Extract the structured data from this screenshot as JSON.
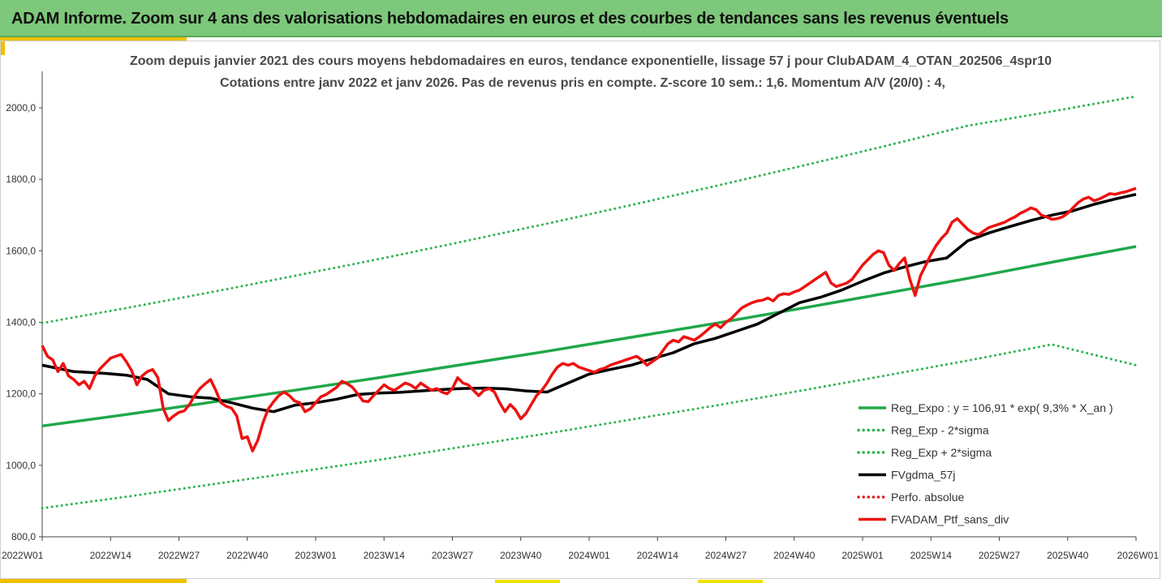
{
  "header": {
    "title": "ADAM Informe. Zoom sur 4 ans des valorisations hebdomadaires en euros et des courbes de tendances sans les revenus éventuels"
  },
  "colors": {
    "banner": "#7dc87a",
    "trend": "#1fa84a",
    "band": "#2bb34f",
    "smooth": "#000000",
    "absolute": "#e02020",
    "portfolio": "#ee1111"
  },
  "chart_data": {
    "type": "line",
    "title_line1": "Zoom depuis janvier 2021 des cours moyens hebdomadaires  en euros, tendance exponentielle, lissage 57 j pour ClubADAM_4_OTAN_202506_4spr10",
    "title_line2": "Cotations entre janv 2022 et janv 2026. Pas de revenus pris en compte. Z-score 10 sem.: 1,6. Momentum  A/V (20/0) : 4,",
    "xlabel": "",
    "ylabel": "",
    "x_range": [
      0,
      208
    ],
    "ylim": [
      800,
      2100
    ],
    "grid": false,
    "legend_position": "bottom-right",
    "x_ticks": [
      {
        "label": "2022W01",
        "x": 0
      },
      {
        "label": "2022W14",
        "x": 13
      },
      {
        "label": "2022W27",
        "x": 26
      },
      {
        "label": "2022W40",
        "x": 39
      },
      {
        "label": "2023W01",
        "x": 52
      },
      {
        "label": "2023W14",
        "x": 65
      },
      {
        "label": "2023W27",
        "x": 78
      },
      {
        "label": "2023W40",
        "x": 91
      },
      {
        "label": "2024W01",
        "x": 104
      },
      {
        "label": "2024W14",
        "x": 117
      },
      {
        "label": "2024W27",
        "x": 130
      },
      {
        "label": "2024W40",
        "x": 143
      },
      {
        "label": "2025W01",
        "x": 156
      },
      {
        "label": "2025W14",
        "x": 169
      },
      {
        "label": "2025W27",
        "x": 182
      },
      {
        "label": "2025W40",
        "x": 195
      },
      {
        "label": "2026W01",
        "x": 208
      }
    ],
    "y_ticks": [
      {
        "label": "800,0",
        "value": 800
      },
      {
        "label": "1000,0",
        "value": 1000
      },
      {
        "label": "1200,0",
        "value": 1200
      },
      {
        "label": "1400,0",
        "value": 1400
      },
      {
        "label": "1600,0",
        "value": 1600
      },
      {
        "label": "1800,0",
        "value": 1800
      },
      {
        "label": "2000,0",
        "value": 2000
      }
    ],
    "series": [
      {
        "name": "Reg_Expo : y = 106,91 * exp( 9,3% *  X_an )",
        "style": "solid-thick",
        "color": "#1fa84a",
        "x": [
          0,
          16,
          32,
          48,
          64,
          80,
          96,
          112,
          128,
          144,
          160,
          176,
          192,
          208
        ],
        "values": [
          1110,
          1142,
          1176,
          1210,
          1245,
          1282,
          1319,
          1358,
          1397,
          1438,
          1480,
          1523,
          1568,
          1612
        ]
      },
      {
        "name": "Reg_Exp - 2*sigma",
        "style": "dotted",
        "color": "#2bb34f",
        "x": [
          0,
          16,
          32,
          48,
          64,
          80,
          96,
          112,
          128,
          144,
          160,
          176,
          192,
          208
        ],
        "values": [
          880,
          912,
          946,
          980,
          1015,
          1052,
          1089,
          1128,
          1167,
          1208,
          1250,
          1293,
          1338,
          1280
        ]
      },
      {
        "name": "Reg_Exp + 2*sigma",
        "style": "dotted",
        "color": "#2bb34f",
        "x": [
          0,
          16,
          32,
          48,
          64,
          80,
          96,
          112,
          128,
          144,
          160,
          176,
          192,
          208
        ],
        "values": [
          1398,
          1440,
          1484,
          1530,
          1577,
          1626,
          1676,
          1728,
          1781,
          1836,
          1892,
          1950,
          1990,
          2032
        ]
      },
      {
        "name": "FVgdma_57j",
        "style": "solid-thick",
        "color": "#000000",
        "x": [
          0,
          6,
          12,
          16,
          20,
          24,
          28,
          32,
          36,
          40,
          44,
          48,
          52,
          56,
          60,
          64,
          68,
          72,
          76,
          80,
          84,
          88,
          92,
          96,
          100,
          104,
          108,
          112,
          116,
          120,
          124,
          128,
          132,
          136,
          140,
          144,
          148,
          152,
          156,
          160,
          164,
          168,
          172,
          176,
          180,
          184,
          188,
          192,
          196,
          200,
          204,
          208
        ],
        "values": [
          1280,
          1262,
          1257,
          1252,
          1240,
          1200,
          1192,
          1188,
          1175,
          1160,
          1150,
          1168,
          1175,
          1185,
          1198,
          1202,
          1204,
          1208,
          1212,
          1215,
          1216,
          1214,
          1208,
          1205,
          1230,
          1255,
          1268,
          1280,
          1298,
          1315,
          1340,
          1355,
          1375,
          1395,
          1425,
          1455,
          1470,
          1490,
          1515,
          1538,
          1555,
          1570,
          1580,
          1628,
          1650,
          1668,
          1685,
          1700,
          1712,
          1730,
          1745,
          1758
        ]
      },
      {
        "name": "Perfo. absolue",
        "style": "dotted",
        "color": "#e02020",
        "x": [],
        "values": []
      },
      {
        "name": "FVADAM_Ptf_sans_div",
        "style": "solid-thick",
        "color": "#ee1111",
        "x": [
          0,
          1,
          2,
          3,
          4,
          5,
          6,
          7,
          8,
          9,
          10,
          11,
          12,
          13,
          14,
          15,
          16,
          17,
          18,
          19,
          20,
          21,
          22,
          23,
          24,
          25,
          26,
          27,
          28,
          29,
          30,
          31,
          32,
          33,
          34,
          35,
          36,
          37,
          38,
          39,
          40,
          41,
          42,
          43,
          44,
          45,
          46,
          47,
          48,
          49,
          50,
          51,
          52,
          53,
          54,
          55,
          56,
          57,
          58,
          59,
          60,
          61,
          62,
          63,
          64,
          65,
          66,
          67,
          68,
          69,
          70,
          71,
          72,
          73,
          74,
          75,
          76,
          77,
          78,
          79,
          80,
          81,
          82,
          83,
          84,
          85,
          86,
          87,
          88,
          89,
          90,
          91,
          92,
          93,
          94,
          95,
          96,
          97,
          98,
          99,
          100,
          101,
          102,
          103,
          104,
          105,
          106,
          107,
          108,
          109,
          110,
          111,
          112,
          113,
          114,
          115,
          116,
          117,
          118,
          119,
          120,
          121,
          122,
          123,
          124,
          125,
          126,
          127,
          128,
          129,
          130,
          131,
          132,
          133,
          134,
          135,
          136,
          137,
          138,
          139,
          140,
          141,
          142,
          143,
          144,
          145,
          146,
          147,
          148,
          149,
          150,
          151,
          152,
          153,
          154,
          155,
          156,
          157,
          158,
          159,
          160,
          161,
          162,
          163,
          164,
          165,
          166,
          167,
          168,
          169,
          170,
          171,
          172,
          173,
          174,
          175,
          176,
          177,
          178,
          179,
          180,
          181,
          182,
          183,
          184,
          185,
          186,
          187,
          188,
          189,
          190,
          191,
          192,
          193,
          194,
          195,
          196,
          197,
          198,
          199,
          200,
          201,
          202,
          203,
          204,
          205,
          206,
          207,
          208
        ],
        "values": [
          1335,
          1305,
          1295,
          1262,
          1285,
          1250,
          1240,
          1225,
          1235,
          1215,
          1250,
          1270,
          1285,
          1300,
          1305,
          1310,
          1290,
          1265,
          1225,
          1250,
          1262,
          1268,
          1245,
          1160,
          1125,
          1138,
          1148,
          1152,
          1170,
          1195,
          1215,
          1228,
          1240,
          1210,
          1175,
          1165,
          1160,
          1138,
          1075,
          1080,
          1040,
          1070,
          1120,
          1158,
          1178,
          1195,
          1205,
          1195,
          1180,
          1175,
          1150,
          1158,
          1175,
          1192,
          1198,
          1208,
          1218,
          1235,
          1228,
          1218,
          1200,
          1180,
          1178,
          1195,
          1210,
          1225,
          1215,
          1210,
          1220,
          1230,
          1225,
          1215,
          1230,
          1220,
          1210,
          1215,
          1205,
          1200,
          1215,
          1245,
          1230,
          1225,
          1210,
          1195,
          1210,
          1215,
          1205,
          1175,
          1150,
          1170,
          1155,
          1130,
          1145,
          1170,
          1195,
          1210,
          1230,
          1255,
          1275,
          1285,
          1280,
          1285,
          1275,
          1270,
          1265,
          1260,
          1268,
          1272,
          1280,
          1285,
          1290,
          1295,
          1300,
          1305,
          1295,
          1280,
          1290,
          1300,
          1320,
          1340,
          1350,
          1345,
          1360,
          1355,
          1350,
          1360,
          1372,
          1385,
          1395,
          1385,
          1400,
          1410,
          1425,
          1440,
          1448,
          1455,
          1460,
          1462,
          1468,
          1460,
          1475,
          1480,
          1478,
          1485,
          1490,
          1500,
          1510,
          1520,
          1530,
          1540,
          1510,
          1500,
          1505,
          1510,
          1520,
          1540,
          1560,
          1575,
          1590,
          1600,
          1595,
          1560,
          1545,
          1565,
          1580,
          1520,
          1475,
          1530,
          1560,
          1590,
          1615,
          1635,
          1650,
          1680,
          1690,
          1675,
          1660,
          1650,
          1645,
          1655,
          1665,
          1670,
          1675,
          1680,
          1688,
          1695,
          1705,
          1712,
          1720,
          1715,
          1700,
          1695,
          1688,
          1690,
          1695,
          1705,
          1720,
          1735,
          1745,
          1750,
          1740,
          1745,
          1752,
          1760,
          1758,
          1762,
          1765,
          1770,
          1775
        ]
      }
    ]
  }
}
